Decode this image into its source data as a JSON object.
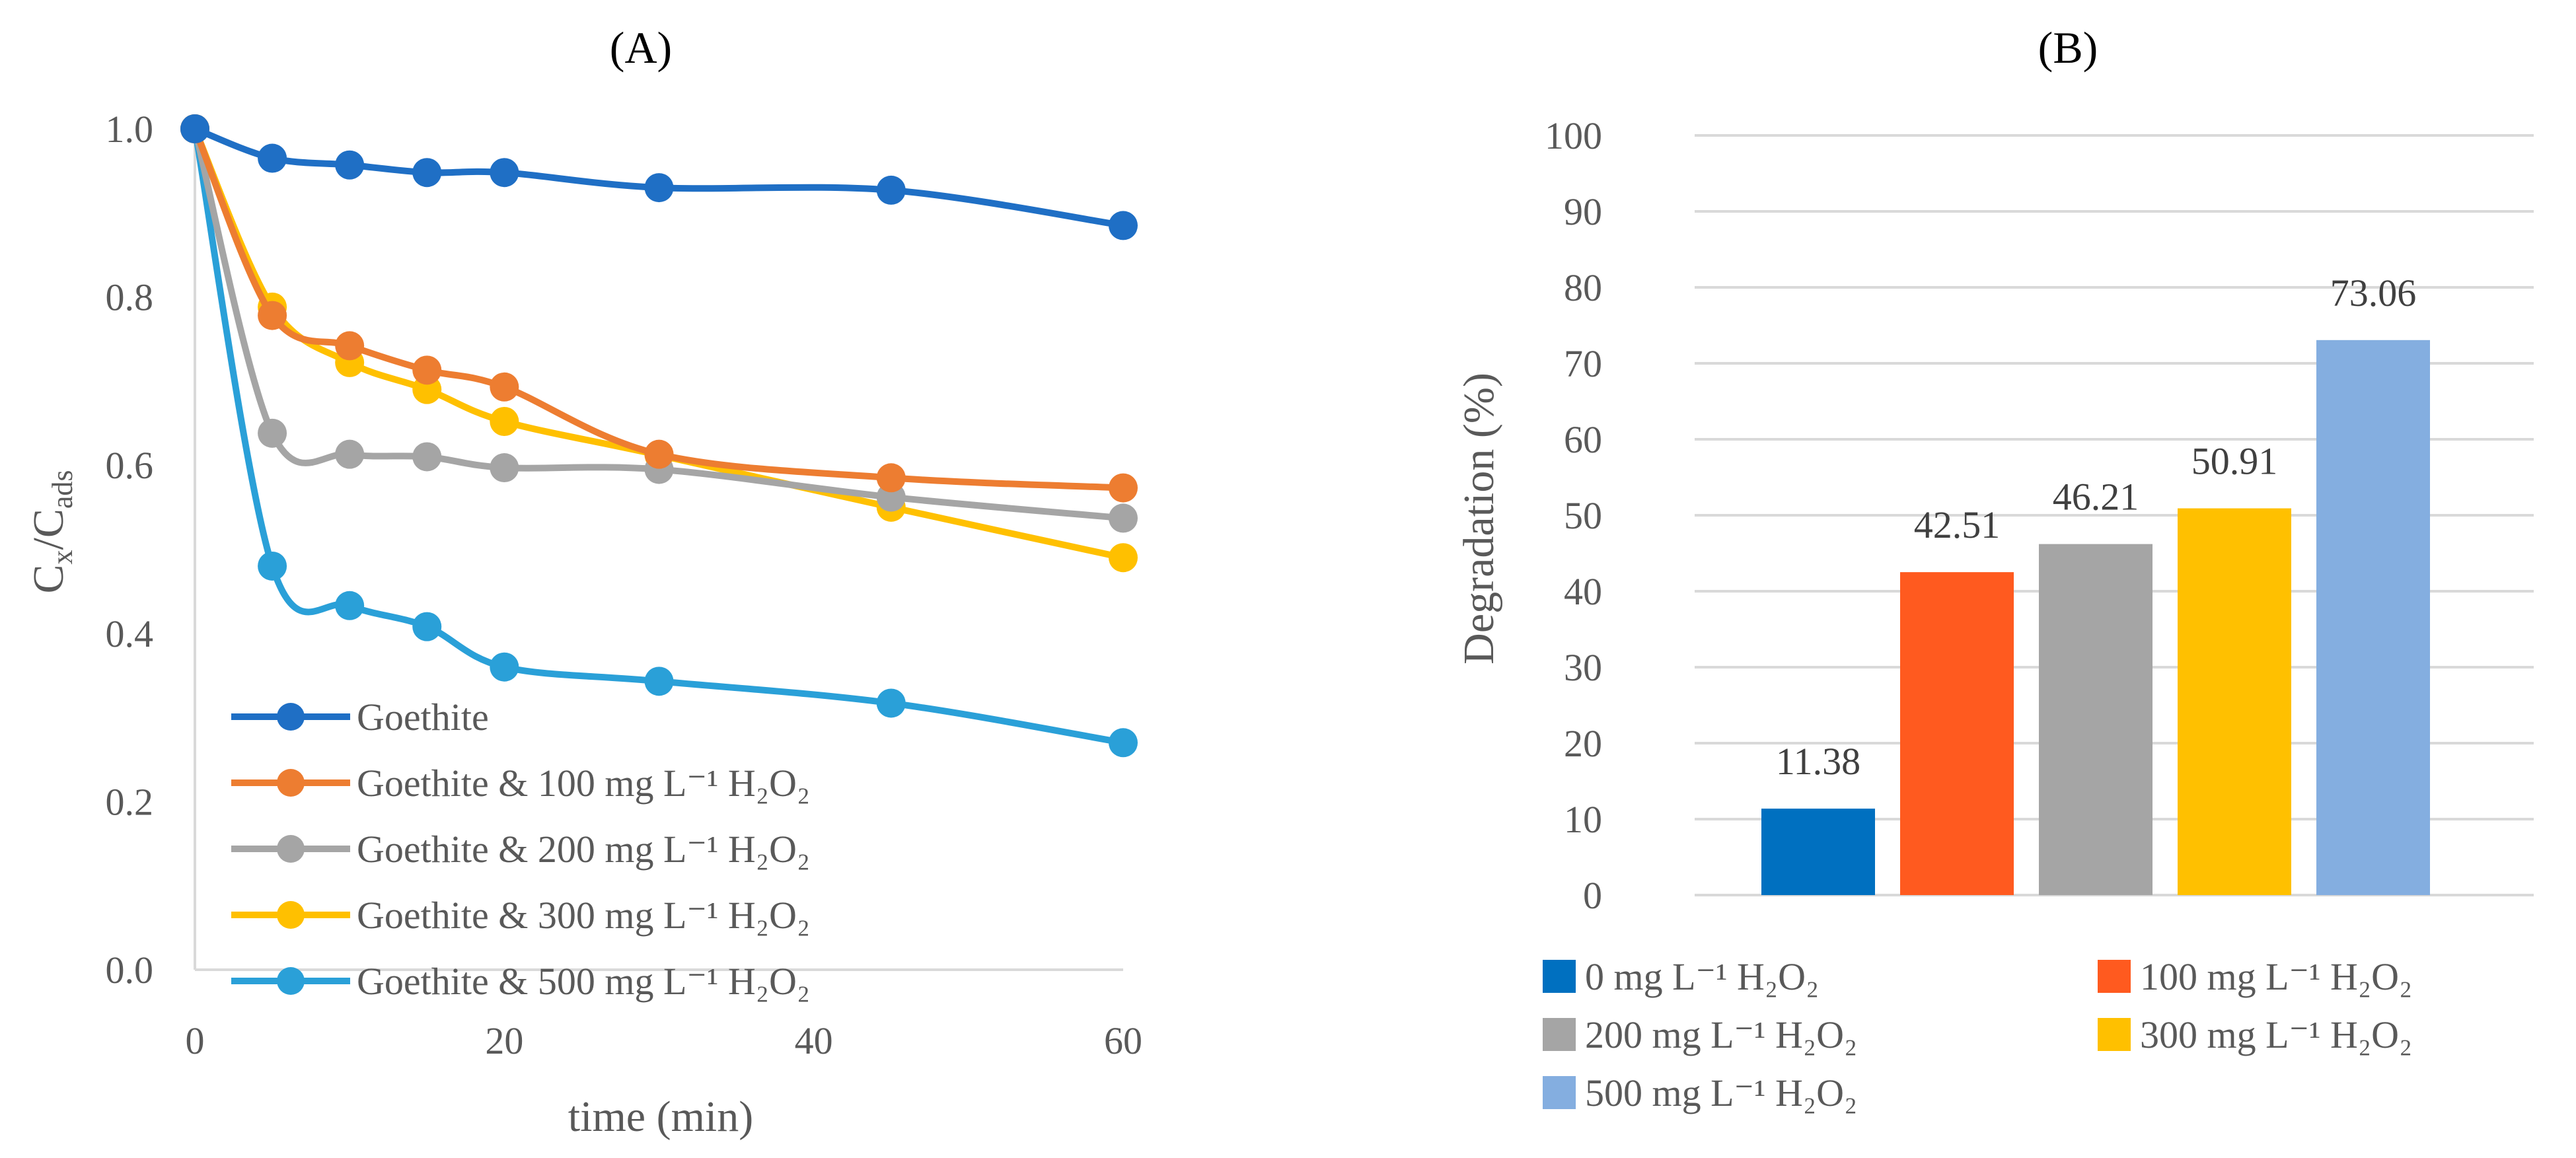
{
  "chart_data": [
    {
      "id": "A",
      "type": "line",
      "title": "(A)",
      "xlabel": "time (min)",
      "ylabel": "C",
      "ylabel_sub1": "x",
      "ylabel_mid": "/C",
      "ylabel_sub2": "ads",
      "xlim": [
        0,
        60
      ],
      "ylim": [
        0,
        1
      ],
      "xticks": [
        "0",
        "20",
        "40",
        "60"
      ],
      "yticks": [
        "0.0",
        "0.2",
        "0.4",
        "0.6",
        "0.8",
        "1.0"
      ],
      "grid": false,
      "legend_position": "bottom-left",
      "x": [
        0,
        5,
        10,
        15,
        20,
        30,
        45,
        60
      ],
      "series": [
        {
          "name": "Goethite",
          "color": "#1f6fc5",
          "values": [
            1.0,
            0.965,
            0.957,
            0.948,
            0.948,
            0.93,
            0.927,
            0.885
          ]
        },
        {
          "name": "Goethite & 100 mg L⁻¹ H₂O₂",
          "color": "#ed7d31",
          "values": [
            1.0,
            0.778,
            0.742,
            0.713,
            0.693,
            0.613,
            0.585,
            0.573
          ]
        },
        {
          "name": "Goethite & 200 mg L⁻¹ H₂O₂",
          "color": "#a5a5a5",
          "values": [
            1.0,
            0.638,
            0.613,
            0.61,
            0.597,
            0.595,
            0.562,
            0.537
          ]
        },
        {
          "name": "Goethite & 300 mg L⁻¹ H₂O₂",
          "color": "#ffc000",
          "values": [
            1.0,
            0.788,
            0.722,
            0.69,
            0.652,
            0.612,
            0.55,
            0.49
          ]
        },
        {
          "name": "Goethite & 500 mg L⁻¹ H₂O₂",
          "color": "#2aa0d8",
          "values": [
            1.0,
            0.48,
            0.433,
            0.408,
            0.36,
            0.343,
            0.317,
            0.27
          ]
        }
      ]
    },
    {
      "id": "B",
      "type": "bar",
      "title": "(B)",
      "xlabel": "",
      "ylabel": "Degradation (%)",
      "ylim": [
        0,
        100
      ],
      "yticks": [
        "0",
        "10",
        "20",
        "30",
        "40",
        "50",
        "60",
        "70",
        "80",
        "90",
        "100"
      ],
      "grid": true,
      "legend_position": "bottom",
      "categories": [
        "0 mg L⁻¹ H₂O₂",
        "100 mg L⁻¹ H₂O₂",
        "200 mg L⁻¹ H₂O₂",
        "300 mg L⁻¹ H₂O₂",
        "500 mg L⁻¹ H₂O₂"
      ],
      "values": [
        11.38,
        42.51,
        46.21,
        50.91,
        73.06
      ],
      "value_labels": [
        "11.38",
        "42.51",
        "46.21",
        "50.91",
        "73.06"
      ],
      "colors": [
        "#0070c0",
        "#ff5a1f",
        "#a5a5a5",
        "#ffc000",
        "#84aee0"
      ]
    }
  ]
}
